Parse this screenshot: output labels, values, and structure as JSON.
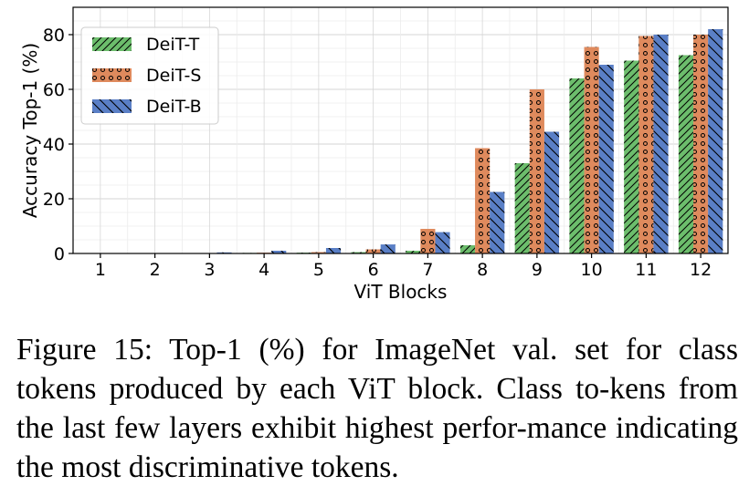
{
  "chart_data": {
    "type": "bar",
    "xlabel": "ViT Blocks",
    "ylabel": "Accuracy Top-1 (%)",
    "ylim": [
      0,
      90
    ],
    "yticks": [
      0,
      20,
      40,
      60,
      80
    ],
    "categories": [
      "1",
      "2",
      "3",
      "4",
      "5",
      "6",
      "7",
      "8",
      "9",
      "10",
      "11",
      "12"
    ],
    "grid": true,
    "legend_position": "top-left",
    "series": [
      {
        "name": "DeiT-T",
        "color": "#6cbd6c",
        "hatch": "diagonal",
        "values": [
          0.1,
          0.1,
          0.1,
          0.2,
          0.3,
          0.5,
          1.0,
          3.0,
          33.0,
          64.0,
          70.5,
          72.5
        ]
      },
      {
        "name": "DeiT-S",
        "color": "#df8a5d",
        "hatch": "circles",
        "values": [
          0.1,
          0.1,
          0.1,
          0.3,
          0.5,
          1.5,
          9.0,
          38.5,
          60.0,
          75.5,
          79.5,
          80.0
        ]
      },
      {
        "name": "DeiT-B",
        "color": "#5a7fc6",
        "hatch": "backslash",
        "values": [
          0.1,
          0.1,
          0.4,
          1.0,
          2.0,
          3.3,
          7.8,
          22.5,
          44.5,
          69.0,
          80.0,
          82.0
        ]
      }
    ]
  },
  "caption": "Figure 15: Top-1 (%) for ImageNet val.  set for class tokens produced by each ViT block. Class to-kens from the last few layers exhibit highest perfor-mance indicating the most discriminative tokens."
}
